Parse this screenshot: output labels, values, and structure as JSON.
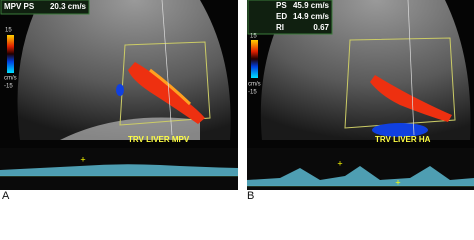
{
  "panels": [
    {
      "label": "A",
      "measurements": [
        [
          "MPV PS",
          "20.3 cm/s"
        ]
      ],
      "scale": {
        "top": "15",
        "unit": "cm/s",
        "bottom": "-15"
      },
      "caption": "TRV LIVER MPV"
    },
    {
      "label": "B",
      "measurements": [
        [
          "PS",
          "45.9 cm/s"
        ],
        [
          "ED",
          "14.9 cm/s"
        ],
        [
          "RI",
          "0.67"
        ]
      ],
      "scale": {
        "top": "15",
        "unit": "cm/s",
        "bottom": "-15"
      },
      "caption": "TRV LIVER HA"
    }
  ]
}
